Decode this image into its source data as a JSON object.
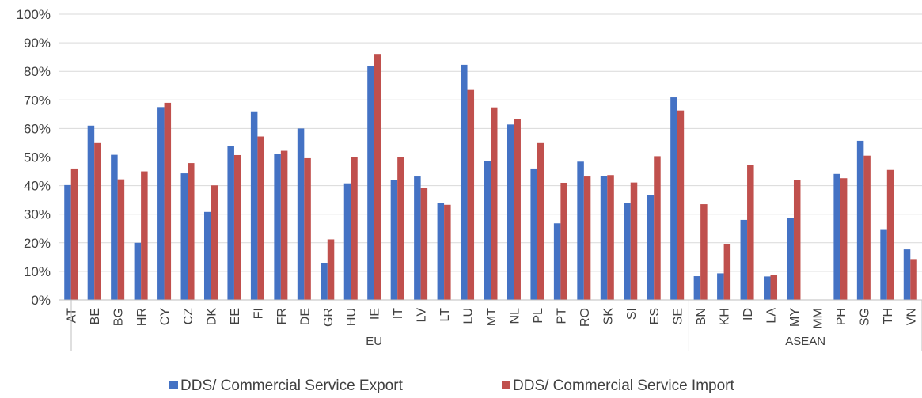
{
  "chart_data": {
    "type": "bar",
    "ylim": [
      0,
      100
    ],
    "y_ticks": [
      0,
      10,
      20,
      30,
      40,
      50,
      60,
      70,
      80,
      90,
      100
    ],
    "y_tick_suffix": "%",
    "grid": true,
    "legend_position": "bottom",
    "categories": [
      "AT",
      "BE",
      "BG",
      "HR",
      "CY",
      "CZ",
      "DK",
      "EE",
      "FI",
      "FR",
      "DE",
      "GR",
      "HU",
      "IE",
      "IT",
      "LV",
      "LT",
      "LU",
      "MT",
      "NL",
      "PL",
      "PT",
      "RO",
      "SK",
      "SI",
      "ES",
      "SE",
      "BN",
      "KH",
      "ID",
      "LA",
      "MY",
      "MM",
      "PH",
      "SG",
      "TH",
      "VN"
    ],
    "groups": [
      {
        "label": "EU",
        "count": 27
      },
      {
        "label": "ASEAN",
        "count": 10
      }
    ],
    "series": [
      {
        "name": "DDS/ Commercial Service Export",
        "color": "#4472C4",
        "values": [
          40.2,
          61.0,
          50.8,
          20.0,
          67.5,
          44.3,
          30.8,
          54.0,
          66.0,
          51.0,
          60.0,
          12.8,
          40.8,
          81.8,
          42.0,
          43.2,
          34.0,
          82.3,
          48.7,
          61.4,
          46.0,
          26.8,
          48.4,
          43.4,
          33.8,
          36.7,
          70.9,
          8.3,
          9.3,
          28.0,
          8.2,
          28.8,
          0,
          44.1,
          55.7,
          24.5,
          17.7
        ]
      },
      {
        "name": "DDS/ Commercial Service Import",
        "color": "#C0504D",
        "values": [
          46.0,
          54.9,
          42.2,
          45.0,
          69.0,
          47.9,
          40.1,
          50.7,
          57.2,
          52.2,
          49.6,
          21.2,
          49.9,
          86.1,
          49.9,
          39.1,
          33.3,
          73.5,
          67.4,
          63.4,
          54.9,
          41.0,
          43.2,
          43.7,
          41.1,
          50.3,
          66.3,
          33.5,
          19.5,
          47.1,
          8.8,
          42.0,
          0,
          42.6,
          50.5,
          45.5,
          14.3
        ]
      }
    ]
  }
}
